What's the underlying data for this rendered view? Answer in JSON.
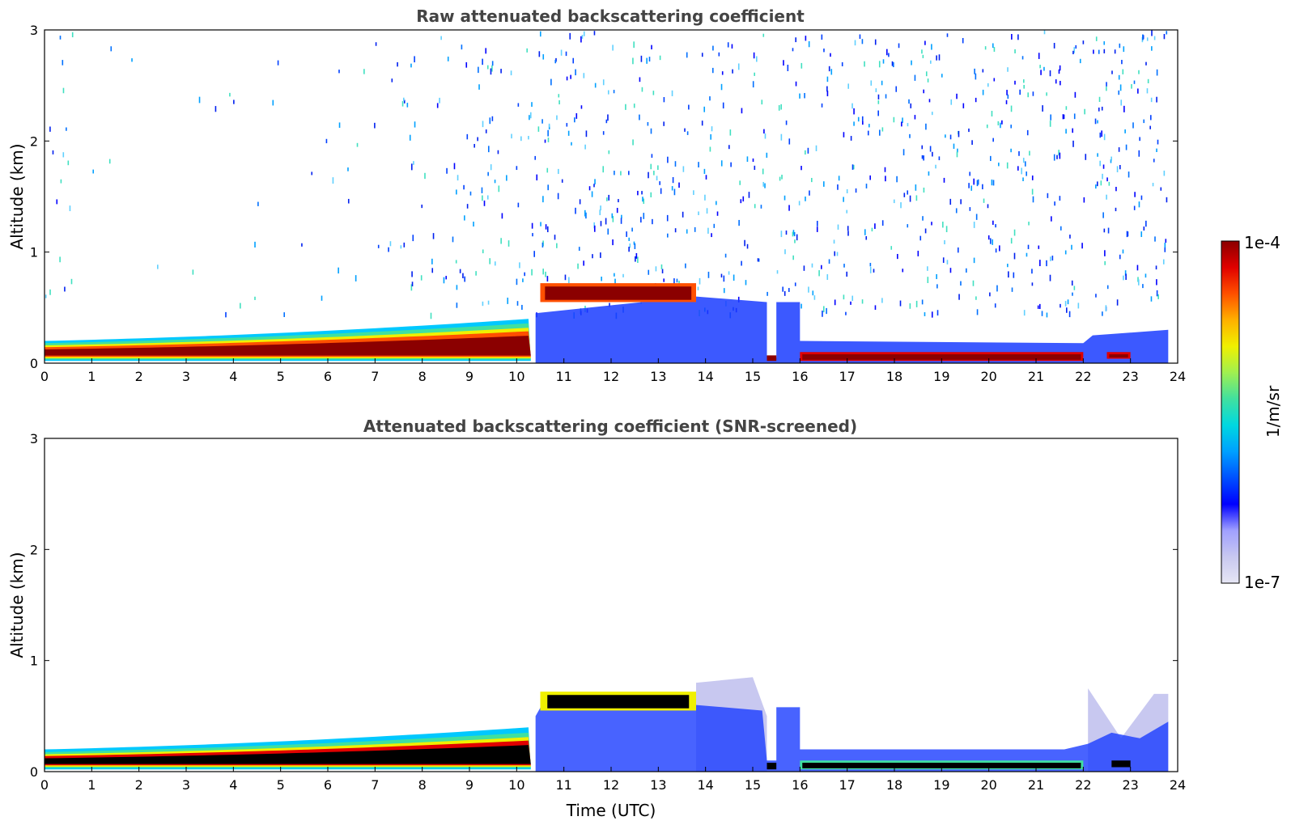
{
  "chart_data": [
    {
      "type": "heatmap",
      "title": "Raw attenuated backscattering coefficient",
      "xlabel": "",
      "ylabel": "Altitude (km)",
      "xlim": [
        0,
        24
      ],
      "ylim": [
        0,
        3
      ],
      "xticks": [
        "0",
        "1",
        "2",
        "3",
        "4",
        "5",
        "6",
        "7",
        "8",
        "9",
        "10",
        "11",
        "12",
        "13",
        "14",
        "15",
        "16",
        "17",
        "18",
        "19",
        "20",
        "21",
        "22",
        "23",
        "24"
      ],
      "yticks": [
        "0",
        "1",
        "2",
        "3"
      ],
      "layers": [
        {
          "name": "boundary layer",
          "t_start": 0,
          "t_end": 10.3,
          "top_km_start": 0.2,
          "top_km_end": 0.4,
          "level": "1e-4"
        },
        {
          "name": "cloud layer",
          "t_start": 10.5,
          "t_end": 13.8,
          "base_km": 0.55,
          "top_km": 0.72,
          "level": "1e-4"
        },
        {
          "name": "fog layer",
          "t_start": 16.0,
          "t_end": 22.0,
          "base_km": 0.02,
          "top_km": 0.1,
          "level": "1e-4"
        },
        {
          "name": "fog layer",
          "t_start": 22.5,
          "t_end": 23.0,
          "base_km": 0.04,
          "top_km": 0.1,
          "level": "1e-4"
        }
      ],
      "noise": "scattered noise above layers, increasing after 10 UTC"
    },
    {
      "type": "heatmap",
      "title": "Attenuated backscattering coefficient (SNR-screened)",
      "xlabel": "Time (UTC)",
      "ylabel": "Altitude (km)",
      "xlim": [
        0,
        24
      ],
      "ylim": [
        0,
        3
      ],
      "xticks": [
        "0",
        "1",
        "2",
        "3",
        "4",
        "5",
        "6",
        "7",
        "8",
        "9",
        "10",
        "11",
        "12",
        "13",
        "14",
        "15",
        "16",
        "17",
        "18",
        "19",
        "20",
        "21",
        "22",
        "23",
        "24"
      ],
      "yticks": [
        "0",
        "1",
        "2",
        "3"
      ],
      "layers": [
        {
          "name": "boundary layer",
          "t_start": 0,
          "t_end": 10.3,
          "top_km_start": 0.2,
          "top_km_end": 0.4,
          "level": "saturated"
        },
        {
          "name": "cloud layer",
          "t_start": 10.5,
          "t_end": 13.8,
          "base_km": 0.55,
          "top_km": 0.72,
          "level": "saturated"
        },
        {
          "name": "fog layer",
          "t_start": 16.0,
          "t_end": 22.0,
          "base_km": 0.02,
          "top_km": 0.1,
          "level": "saturated"
        }
      ]
    }
  ],
  "colorbar": {
    "max_label": "1e-4",
    "min_label": "1e-7",
    "unit_label": "1/m/sr",
    "colors": [
      "#e6e6f5",
      "#c8c8f0",
      "#a0a0ff",
      "#0000ff",
      "#0050ff",
      "#00a0ff",
      "#00d8e0",
      "#40e0a0",
      "#a0f050",
      "#f0f000",
      "#ffb000",
      "#ff5000",
      "#e00000",
      "#8b0000"
    ]
  }
}
